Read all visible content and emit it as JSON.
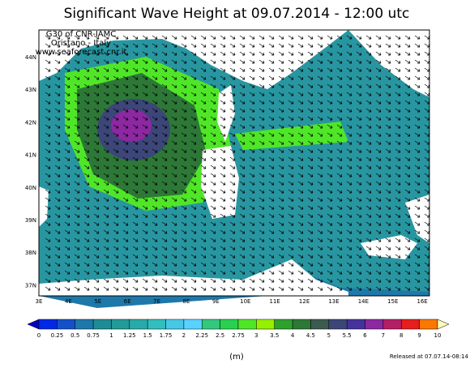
{
  "header": {
    "title": "Significant Wave Height at 09.07.2014 - 12:00 utc"
  },
  "credits": [
    "G30 of CNR-IAMC",
    "Oristano - Italy",
    "www.seaforecast.cnr.it"
  ],
  "lat_labels": [
    "44N",
    "43N",
    "42N",
    "41N",
    "40N",
    "39N",
    "38N",
    "37N"
  ],
  "lon_labels": [
    "3E",
    "4E",
    "5E",
    "6E",
    "7E",
    "8E",
    "9E",
    "10E",
    "11E",
    "12E",
    "13E",
    "14E",
    "15E",
    "16E"
  ],
  "colorbar": {
    "levels": [
      0,
      0.25,
      0.5,
      0.75,
      1,
      1.25,
      1.5,
      1.75,
      2,
      2.25,
      2.5,
      2.75,
      3,
      3.5,
      4,
      4.5,
      5,
      5.5,
      6,
      7,
      8,
      9,
      10
    ],
    "colors": [
      "#0000c8",
      "#0028e6",
      "#1450c8",
      "#1e78aa",
      "#1e8c96",
      "#239a96",
      "#28aaaa",
      "#32bebe",
      "#46c8e6",
      "#5ad2ff",
      "#32c87d",
      "#28d250",
      "#50e628",
      "#96f000",
      "#2ea02e",
      "#2d7837",
      "#3c5a50",
      "#3c4678",
      "#46329b",
      "#8c28a0",
      "#b41e64",
      "#e61e1e",
      "#fa7800",
      "#ffdc32",
      "#fffab4"
    ],
    "unit": "(m)"
  },
  "footer": "Released at 07.07.14-08:14"
}
